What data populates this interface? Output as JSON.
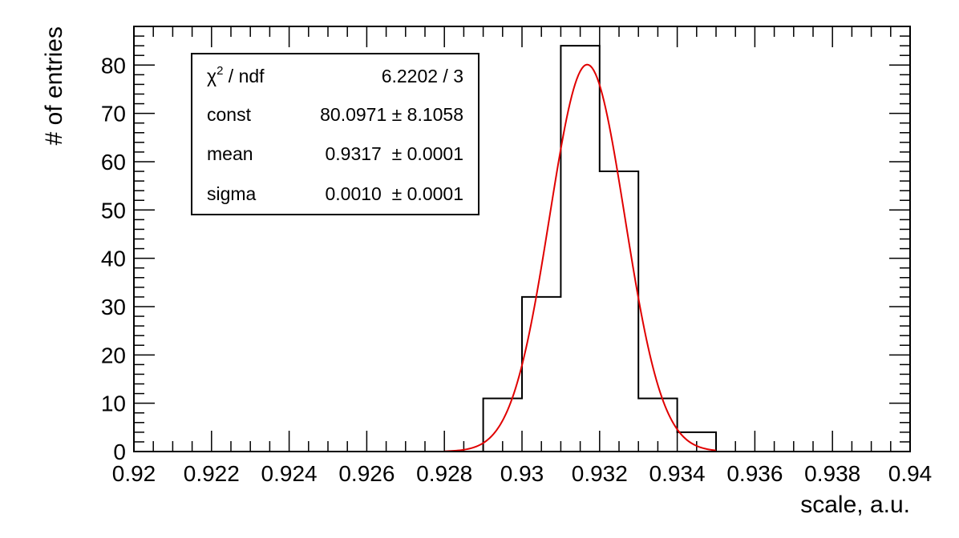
{
  "chart_data": {
    "type": "histogram",
    "xlabel": "scale, a.u.",
    "ylabel": "# of entries",
    "xlim": [
      0.92,
      0.94
    ],
    "ylim": [
      0,
      88
    ],
    "x_ticks": [
      0.92,
      0.922,
      0.924,
      0.926,
      0.928,
      0.93,
      0.932,
      0.934,
      0.936,
      0.938,
      0.94
    ],
    "x_tick_labels": [
      "0.92",
      "0.922",
      "0.924",
      "0.926",
      "0.928",
      "0.93",
      "0.932",
      "0.934",
      "0.936",
      "0.938",
      "0.94"
    ],
    "y_ticks": [
      0,
      10,
      20,
      30,
      40,
      50,
      60,
      70,
      80
    ],
    "y_tick_labels": [
      "0",
      "10",
      "20",
      "30",
      "40",
      "50",
      "60",
      "70",
      "80"
    ],
    "bin_edges": [
      0.928,
      0.929,
      0.93,
      0.931,
      0.932,
      0.933,
      0.934,
      0.935
    ],
    "bin_counts": [
      0,
      11,
      32,
      84,
      58,
      11,
      4
    ],
    "histogram_color": "#000000",
    "fit": {
      "function": "gaus",
      "color": "#e00000",
      "const": 80.0971,
      "mean": 0.93168,
      "sigma": 0.00097
    },
    "stats_box": {
      "location": "top-left",
      "rows": [
        {
          "label": "χ² / ndf",
          "label_main": "χ",
          "label_sup": "2",
          "label_rest": " / ndf",
          "value": "6.2202 / 3"
        },
        {
          "label": "const",
          "value": "80.0971 ± 8.1058"
        },
        {
          "label": "mean",
          "value": "0.9317  ± 0.0001"
        },
        {
          "label": "sigma",
          "value": "0.0010  ± 0.0001"
        }
      ]
    }
  }
}
